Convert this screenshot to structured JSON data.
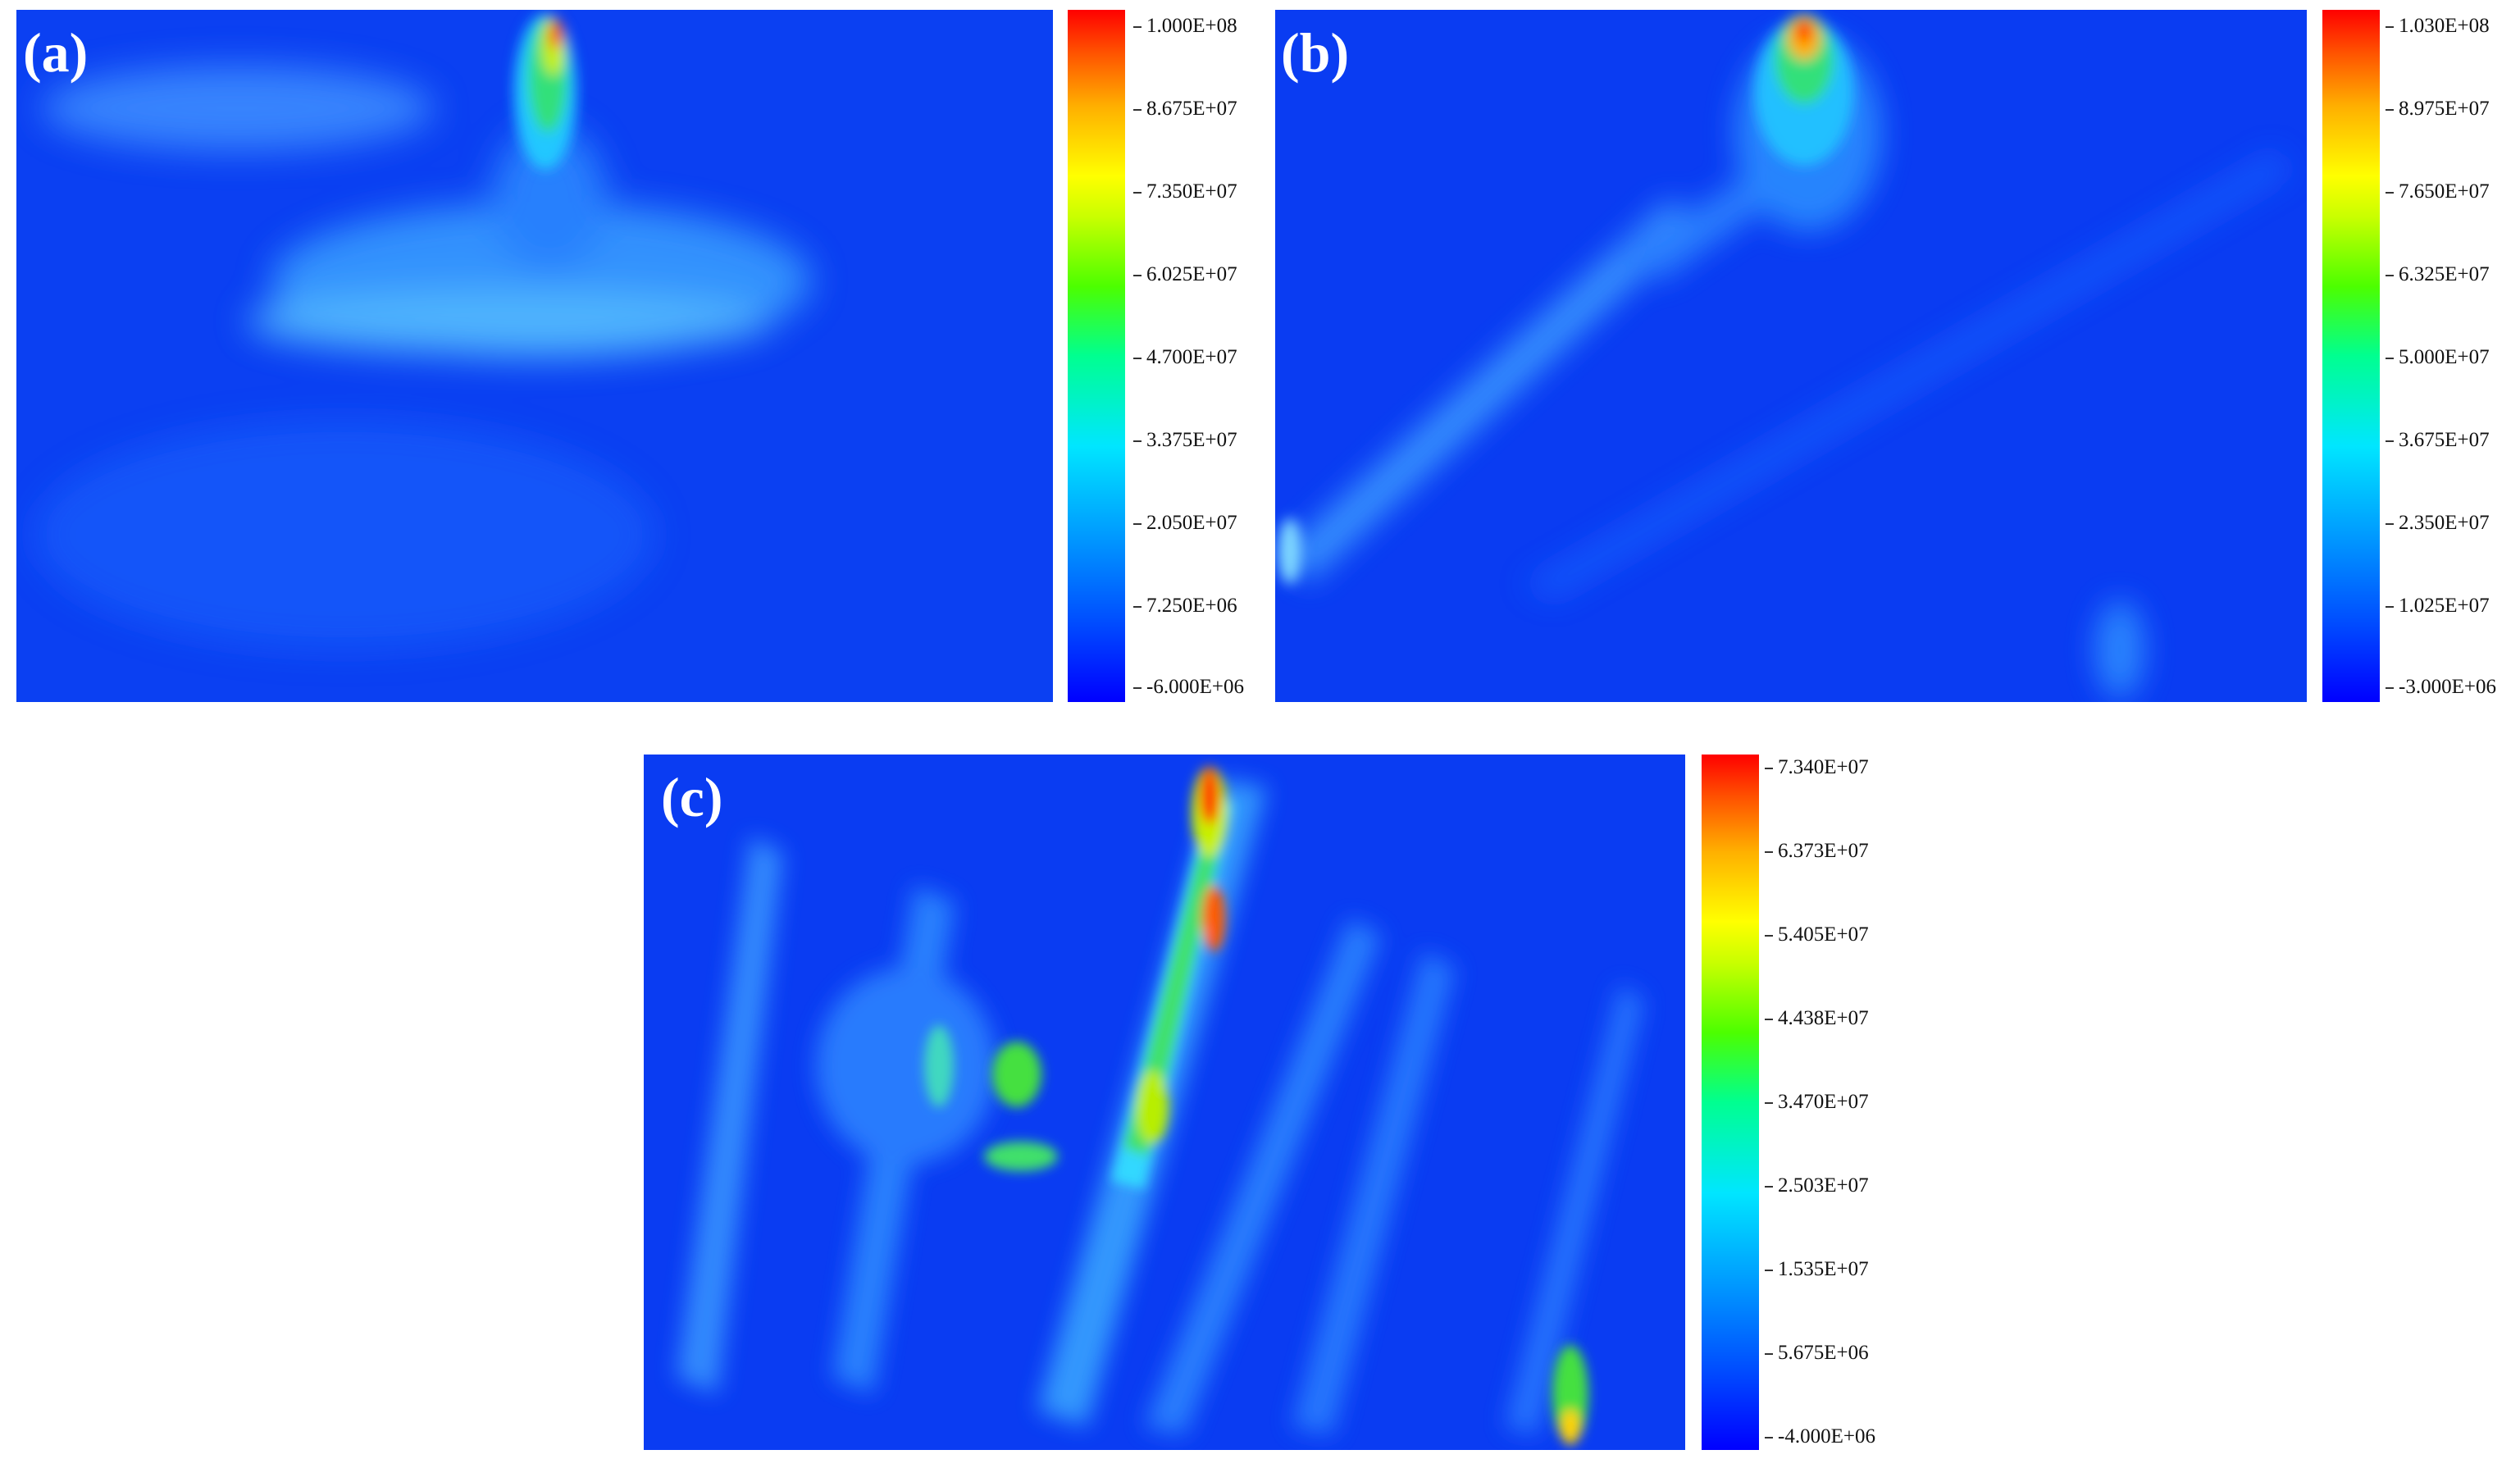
{
  "chart_data": [
    {
      "type": "heatmap",
      "panel_label": "(a)",
      "colorbar_ticks": [
        "1.000E+08",
        "8.675E+07",
        "7.350E+07",
        "6.025E+07",
        "4.700E+07",
        "3.375E+07",
        "2.050E+07",
        "7.250E+06",
        "-6.000E+06"
      ],
      "range": [
        -6000000,
        100000000
      ]
    },
    {
      "type": "heatmap",
      "panel_label": "(b)",
      "colorbar_ticks": [
        "1.030E+08",
        "8.975E+07",
        "7.650E+07",
        "6.325E+07",
        "5.000E+07",
        "3.675E+07",
        "2.350E+07",
        "1.025E+07",
        "-3.000E+06"
      ],
      "range": [
        -3000000,
        103000000
      ]
    },
    {
      "type": "heatmap",
      "panel_label": "(c)",
      "colorbar_ticks": [
        "7.340E+07",
        "6.373E+07",
        "5.405E+07",
        "4.438E+07",
        "3.470E+07",
        "2.503E+07",
        "1.535E+07",
        "5.675E+06",
        "-4.000E+06"
      ],
      "range": [
        -4000000,
        73400000
      ]
    }
  ]
}
